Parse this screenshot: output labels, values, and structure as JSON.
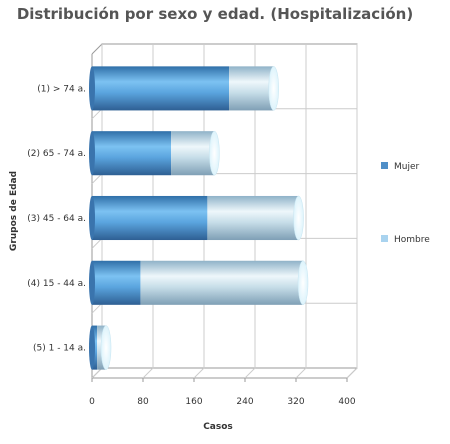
{
  "chart_data": {
    "type": "bar",
    "orientation": "horizontal",
    "stacked": true,
    "style": "3d-cylinder",
    "title": "Distribución por sexo y edad. (Hospitalización)",
    "xlabel": "Casos",
    "ylabel": "Grupos de Edad",
    "categories": [
      "(1) > 74 a.",
      "(2) 65 - 74 a.",
      "(3) 45 - 64 a.",
      "(4) 15 - 44 a.",
      "(5) 1 - 14 a."
    ],
    "series": [
      {
        "name": "Mujer",
        "values": [
          215,
          124,
          181,
          76,
          8
        ]
      },
      {
        "name": "Hombre",
        "values": [
          70,
          68,
          143,
          255,
          14
        ]
      }
    ],
    "xlim": [
      0,
      400
    ],
    "xticks": [
      "0",
      "80",
      "160",
      "240",
      "320",
      "400"
    ],
    "grid": true,
    "legend": "right",
    "colors": {
      "Mujer": "#4f8fc8",
      "Hombre": "#a9d3ef"
    }
  }
}
